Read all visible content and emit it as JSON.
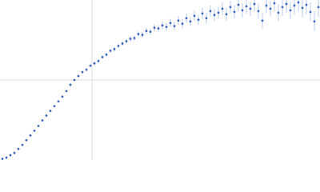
{
  "chart_data": {
    "type": "scatter",
    "x": [
      3,
      8,
      13,
      18,
      23,
      28,
      33,
      38,
      43,
      48,
      53,
      58,
      63,
      68,
      73,
      78,
      83,
      88,
      93,
      98,
      103,
      108,
      113,
      118,
      123,
      128,
      133,
      138,
      143,
      148,
      153,
      158,
      163,
      168,
      173,
      178,
      183,
      188,
      193,
      198,
      203,
      208,
      213,
      218,
      223,
      228,
      233,
      238,
      243,
      248,
      253,
      258,
      263,
      268,
      273,
      278,
      283,
      288,
      293,
      298,
      303,
      308,
      313,
      318,
      323,
      328,
      333,
      338,
      343,
      348,
      353,
      358,
      363,
      368,
      373,
      378,
      383,
      388,
      393,
      398
    ],
    "series": [
      {
        "color": "#3b66c0",
        "error_color": "#a9bfe8",
        "values": [
          0.5,
          2,
          5,
          8,
          13,
          18,
          24,
          30,
          36,
          42,
          49,
          55,
          61,
          67,
          73,
          79,
          86,
          94,
          100,
          105,
          110,
          113,
          118,
          121,
          124,
          129,
          132,
          137,
          139,
          143,
          146,
          149,
          152,
          153,
          158,
          157,
          162,
          161,
          166,
          165,
          169,
          167,
          172,
          168,
          175,
          171,
          178,
          174,
          181,
          176,
          184,
          178,
          187,
          182,
          185,
          190,
          183,
          192,
          186,
          195,
          188,
          193,
          190,
          196,
          187,
          175,
          194,
          190,
          197,
          185,
          192,
          196,
          188,
          194,
          198,
          191,
          195,
          186,
          174,
          192
        ],
        "errors": [
          0,
          0,
          0,
          0,
          0,
          0,
          0,
          0.5,
          0.5,
          0.5,
          0.5,
          0.5,
          1,
          1,
          1,
          1,
          1,
          1,
          1,
          1.5,
          1.5,
          1.5,
          2,
          2,
          2,
          2,
          2.5,
          2.5,
          2.5,
          3,
          3,
          3,
          3.5,
          3.5,
          3.5,
          4,
          4,
          4,
          4.5,
          4.5,
          5,
          5,
          5,
          5.5,
          5.5,
          6,
          6,
          6,
          6.5,
          6.5,
          7,
          7,
          7,
          7.5,
          7.5,
          8,
          8,
          8,
          8.5,
          8.5,
          9,
          9,
          9,
          9.5,
          9.5,
          10,
          10,
          10,
          10.5,
          10.5,
          11,
          11,
          11,
          11.5,
          11.5,
          12,
          12,
          12,
          12.5,
          12.5
        ]
      }
    ],
    "xlim": [
      0,
      400
    ],
    "ylim": [
      0,
      200
    ],
    "xgrid": [
      115
    ],
    "ygrid": [
      100
    ]
  }
}
